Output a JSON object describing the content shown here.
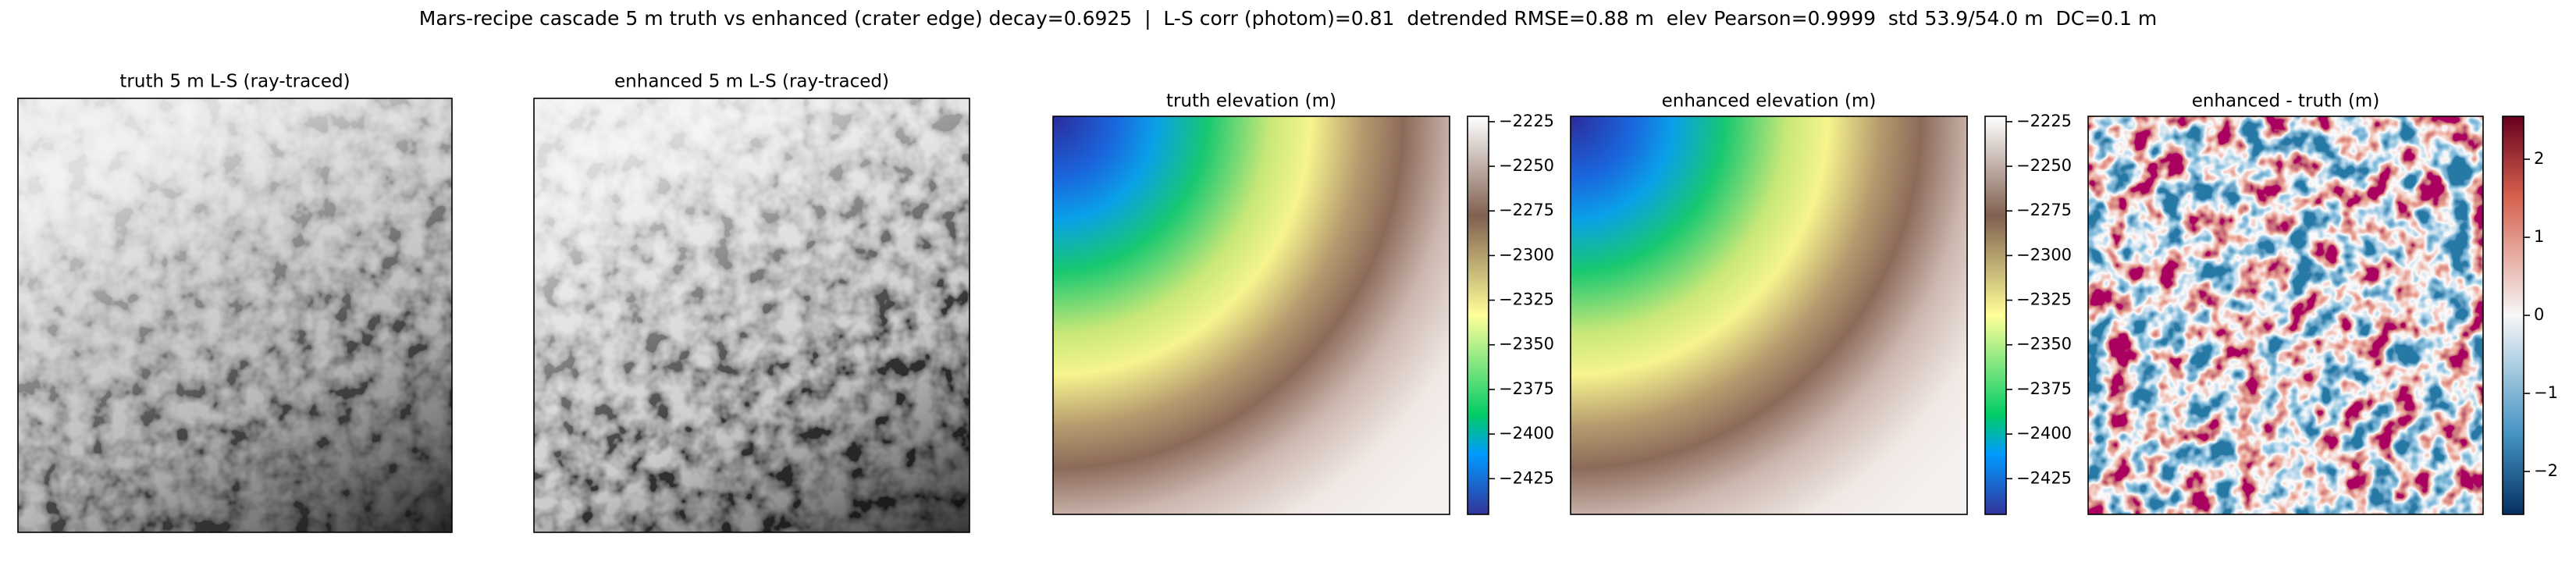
{
  "title": "Mars-recipe cascade 5 m truth vs enhanced (crater edge) decay=0.6925  |  L-S corr (photom)=0.81  detrended RMSE=0.88 m  elev Pearson=0.9999  std 53.9/54.0 m  DC=0.1 m",
  "chart_data": [
    {
      "type": "image",
      "title": "truth 5 m L-S (ray-traced)",
      "cmap": "gray"
    },
    {
      "type": "image",
      "title": "enhanced 5 m L-S (ray-traced)",
      "cmap": "gray"
    },
    {
      "type": "image",
      "title": "truth elevation (m)",
      "cmap": "terrain",
      "clim": [
        -2445,
        -2222
      ],
      "colorbar_ticks": [
        {
          "value": -2225,
          "label": "−2225"
        },
        {
          "value": -2250,
          "label": "−2250"
        },
        {
          "value": -2275,
          "label": "−2275"
        },
        {
          "value": -2300,
          "label": "−2300"
        },
        {
          "value": -2325,
          "label": "−2325"
        },
        {
          "value": -2350,
          "label": "−2350"
        },
        {
          "value": -2375,
          "label": "−2375"
        },
        {
          "value": -2400,
          "label": "−2400"
        },
        {
          "value": -2425,
          "label": "−2425"
        }
      ]
    },
    {
      "type": "image",
      "title": "enhanced elevation (m)",
      "cmap": "terrain",
      "clim": [
        -2445,
        -2222
      ],
      "colorbar_ticks": [
        {
          "value": -2225,
          "label": "−2225"
        },
        {
          "value": -2250,
          "label": "−2250"
        },
        {
          "value": -2275,
          "label": "−2275"
        },
        {
          "value": -2300,
          "label": "−2300"
        },
        {
          "value": -2325,
          "label": "−2325"
        },
        {
          "value": -2350,
          "label": "−2350"
        },
        {
          "value": -2375,
          "label": "−2375"
        },
        {
          "value": -2400,
          "label": "−2400"
        },
        {
          "value": -2425,
          "label": "−2425"
        }
      ]
    },
    {
      "type": "image",
      "title": "enhanced - truth (m)",
      "cmap": "RdBu_r",
      "clim": [
        -2.55,
        2.55
      ],
      "colorbar_ticks": [
        2,
        1,
        0,
        {
          "value": -1,
          "label": "−1"
        },
        {
          "value": -2,
          "label": "−2"
        }
      ]
    }
  ]
}
